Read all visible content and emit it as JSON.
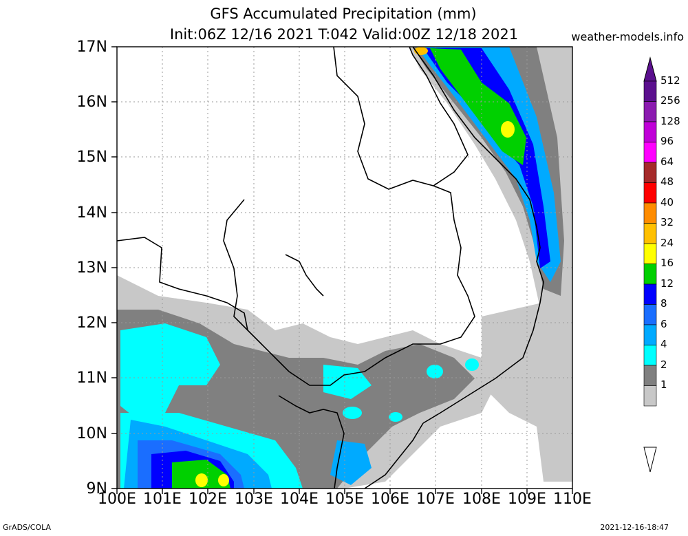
{
  "header": {
    "title": "GFS Accumulated Precipitation (mm)",
    "subtitle": "Init:06Z 12/16 2021 T:042 Valid:00Z 12/18 2021",
    "site": "weather-models.info"
  },
  "axes": {
    "lat_labels": [
      "17N",
      "16N",
      "15N",
      "14N",
      "13N",
      "12N",
      "11N",
      "10N",
      "9N"
    ],
    "lon_labels": [
      "100E",
      "101E",
      "102E",
      "103E",
      "104E",
      "105E",
      "106E",
      "107E",
      "108E",
      "109E",
      "110E"
    ]
  },
  "legend": {
    "levels": [
      "512",
      "256",
      "128",
      "96",
      "64",
      "48",
      "40",
      "32",
      "24",
      "16",
      "12",
      "8",
      "6",
      "4",
      "2",
      "1"
    ],
    "colors": [
      "#5b0f8e",
      "#8b1ab0",
      "#c000d8",
      "#ff00ff",
      "#a52a2a",
      "#ff0000",
      "#ff8c00",
      "#ffc000",
      "#ffff00",
      "#00d000",
      "#0000ff",
      "#1a6eff",
      "#00aaff",
      "#00ffff",
      "#808080",
      "#c8c8c8"
    ]
  },
  "footer": {
    "left": "GrADS/COLA",
    "right": "2021-12-16-18:47"
  }
}
